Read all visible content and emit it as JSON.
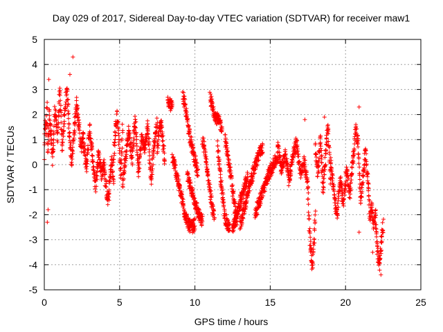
{
  "chart_data": {
    "type": "scatter",
    "title": "Day 029 of 2017, Sidereal Day-to-day VTEC variation (SDTVAR) for receiver maw1",
    "xlabel": "GPS time / hours",
    "ylabel": "SDTVAR / TECUs",
    "xlim": [
      0,
      25
    ],
    "ylim": [
      -5,
      5
    ],
    "xticks": [
      "0",
      "5",
      "10",
      "15",
      "20",
      "25"
    ],
    "yticks": [
      "5",
      "4",
      "3",
      "2",
      "1",
      "0",
      "-1",
      "-2",
      "-3",
      "-4",
      "-5"
    ],
    "grid": true,
    "marker": "+",
    "color": "#ff0000",
    "series": [
      {
        "name": "SDTVAR",
        "segments": [
          {
            "x0": 0.0,
            "x1": 0.4,
            "y": [
              0.3,
              1.8,
              1.2,
              2.6,
              0.5,
              1.4,
              2.2,
              0.9
            ]
          },
          {
            "x0": 0.4,
            "x1": 2.6,
            "y": [
              1.6,
              0.2,
              2.3,
              1.1,
              2.9,
              0.7,
              1.9,
              3.1,
              1.4,
              0.1,
              1.2,
              2.5,
              1.7,
              0.6,
              1.3
            ]
          },
          {
            "x0": 2.6,
            "x1": 4.0,
            "y": [
              0.8,
              -0.2,
              1.5,
              0.3,
              -0.9,
              0.5,
              -0.4,
              0.1
            ]
          },
          {
            "x0": 4.0,
            "x1": 4.6,
            "y": [
              -0.2,
              -1.1,
              -1.5,
              -0.6,
              0.2,
              -0.8
            ]
          },
          {
            "x0": 4.6,
            "x1": 5.2,
            "y": [
              0.2,
              1.3,
              2.0,
              0.9,
              -0.5,
              1.6
            ]
          },
          {
            "x0": 5.2,
            "x1": 7.5,
            "y": [
              -0.8,
              0.4,
              1.4,
              0.2,
              1.9,
              -0.3,
              1.1,
              0.6,
              1.6,
              -0.6,
              0.8,
              1.7
            ]
          },
          {
            "x0": 7.5,
            "x1": 8.0,
            "y": [
              0.6,
              1.3,
              1.7,
              0.9,
              0.2
            ]
          },
          {
            "x0": 8.2,
            "x1": 8.5,
            "y": [
              2.5,
              2.4,
              2.3
            ]
          },
          {
            "x0": 8.5,
            "x1": 10.0,
            "y": [
              0.3,
              -0.2,
              -0.8,
              -1.4,
              -2.0,
              -2.4,
              -2.5,
              -2.4
            ]
          },
          {
            "x0": 9.2,
            "x1": 10.2,
            "y": [
              2.8,
              2.1,
              1.4,
              0.7,
              0.2,
              -0.4
            ]
          },
          {
            "x0": 9.5,
            "x1": 10.5,
            "y": [
              -0.5,
              -1.0,
              -1.5,
              -2.0,
              -2.3
            ]
          },
          {
            "x0": 10.5,
            "x1": 11.3,
            "y": [
              1.0,
              0.5,
              -0.2,
              -1.0,
              -1.7,
              -2.2
            ]
          },
          {
            "x0": 11.0,
            "x1": 11.8,
            "y": [
              2.7,
              2.2,
              1.9,
              1.7,
              1.5
            ]
          },
          {
            "x0": 11.5,
            "x1": 12.3,
            "y": [
              0.8,
              -0.3,
              -1.2,
              -2.0,
              -2.4,
              -2.5
            ]
          },
          {
            "x0": 12.0,
            "x1": 12.8,
            "y": [
              1.0,
              0.3,
              -0.5,
              -1.5,
              -2.3
            ]
          },
          {
            "x0": 12.5,
            "x1": 13.5,
            "y": [
              -2.6,
              -2.1,
              -1.5,
              -1.0,
              -0.5
            ]
          },
          {
            "x0": 13.0,
            "x1": 14.5,
            "y": [
              -2.4,
              -1.8,
              -1.2,
              -0.6,
              0.0,
              0.4,
              0.7
            ]
          },
          {
            "x0": 14.0,
            "x1": 15.5,
            "y": [
              -2.0,
              -1.4,
              -0.9,
              -0.4,
              0.0,
              0.3
            ]
          },
          {
            "x0": 15.5,
            "x1": 17.5,
            "y": [
              0.8,
              -0.2,
              0.5,
              -0.6,
              0.3,
              0.9,
              -0.4,
              0.1,
              -0.8
            ]
          },
          {
            "x0": 17.5,
            "x1": 18.0,
            "y": [
              -1.0,
              -2.5,
              -3.5,
              -4.1,
              -3.2,
              -2.0
            ]
          },
          {
            "x0": 18.0,
            "x1": 19.0,
            "y": [
              0.6,
              -0.4,
              1.2,
              -1.0,
              0.2,
              1.6,
              -0.7
            ]
          },
          {
            "x0": 19.0,
            "x1": 20.5,
            "y": [
              0.2,
              -1.0,
              -2.1,
              -0.5,
              -1.6,
              -0.2,
              -1.2,
              0.3
            ]
          },
          {
            "x0": 20.5,
            "x1": 21.5,
            "y": [
              0.0,
              1.5,
              0.8,
              -1.5,
              -0.4,
              0.6,
              -0.9
            ]
          },
          {
            "x0": 21.5,
            "x1": 22.0,
            "y": [
              -0.5,
              -2.2,
              -1.6,
              -2.5,
              -1.9
            ]
          },
          {
            "x0": 22.0,
            "x1": 22.5,
            "y": [
              -2.3,
              -3.5,
              -4.0,
              -3.1,
              -2.4
            ]
          }
        ],
        "outliers": [
          {
            "x": 0.2,
            "y": -2.3
          },
          {
            "x": 0.25,
            "y": -1.8
          },
          {
            "x": 1.9,
            "y": 4.3
          },
          {
            "x": 1.7,
            "y": 3.6
          },
          {
            "x": 0.3,
            "y": 3.4
          },
          {
            "x": 17.3,
            "y": 1.8
          },
          {
            "x": 18.6,
            "y": 1.9
          },
          {
            "x": 20.9,
            "y": 2.3
          },
          {
            "x": 22.35,
            "y": -4.4
          },
          {
            "x": 21.8,
            "y": -3.5
          },
          {
            "x": 20.9,
            "y": -2.7
          }
        ]
      }
    ]
  }
}
